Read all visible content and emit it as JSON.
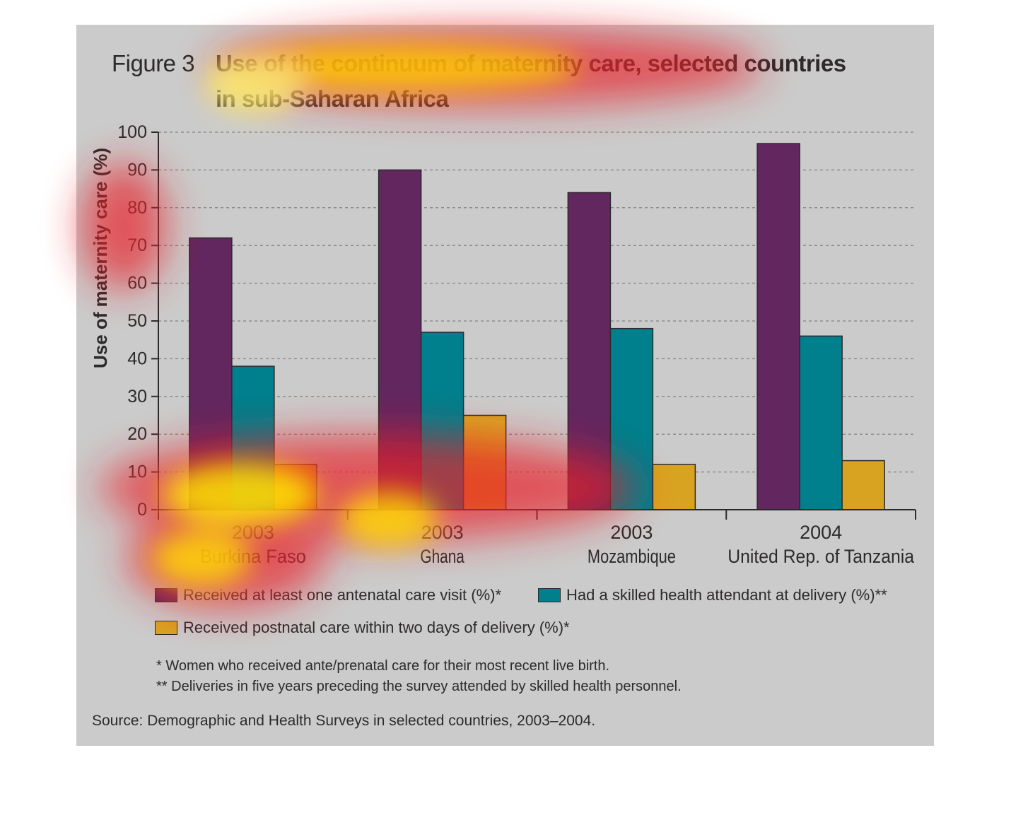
{
  "figure": {
    "number": "Figure 3",
    "title_line1": "Use of the continuum of maternity care, selected countries",
    "title_line2": "in sub-Saharan Africa"
  },
  "chart_data": {
    "type": "bar",
    "ylabel": "Use of maternity care (%)",
    "ylim": [
      0,
      100
    ],
    "yticks": [
      0,
      10,
      20,
      30,
      40,
      50,
      60,
      70,
      80,
      90,
      100
    ],
    "grid": true,
    "categories": [
      {
        "year": "2003",
        "country": "Burkina Faso"
      },
      {
        "year": "2003",
        "country": "Ghana"
      },
      {
        "year": "2003",
        "country": "Mozambique"
      },
      {
        "year": "2004",
        "country": "United Rep. of Tanzania"
      }
    ],
    "series": [
      {
        "name": "Received at least one antenatal care visit (%)*",
        "color": "#62275f",
        "values": [
          72,
          90,
          84,
          97
        ]
      },
      {
        "name": "Had a skilled health attendant at delivery (%)**",
        "color": "#007f8c",
        "values": [
          38,
          47,
          48,
          46
        ]
      },
      {
        "name": "Received postnatal care within two days of delivery (%)*",
        "color": "#d9a322",
        "values": [
          12,
          25,
          12,
          13
        ]
      }
    ]
  },
  "notes": {
    "note1": "* Women who received ante/prenatal care for their most recent live birth.",
    "note2": "** Deliveries in five years preceding the survey attended by skilled health personnel.",
    "source": "Source: Demographic and Health Surveys in selected countries, 2003–2004."
  }
}
